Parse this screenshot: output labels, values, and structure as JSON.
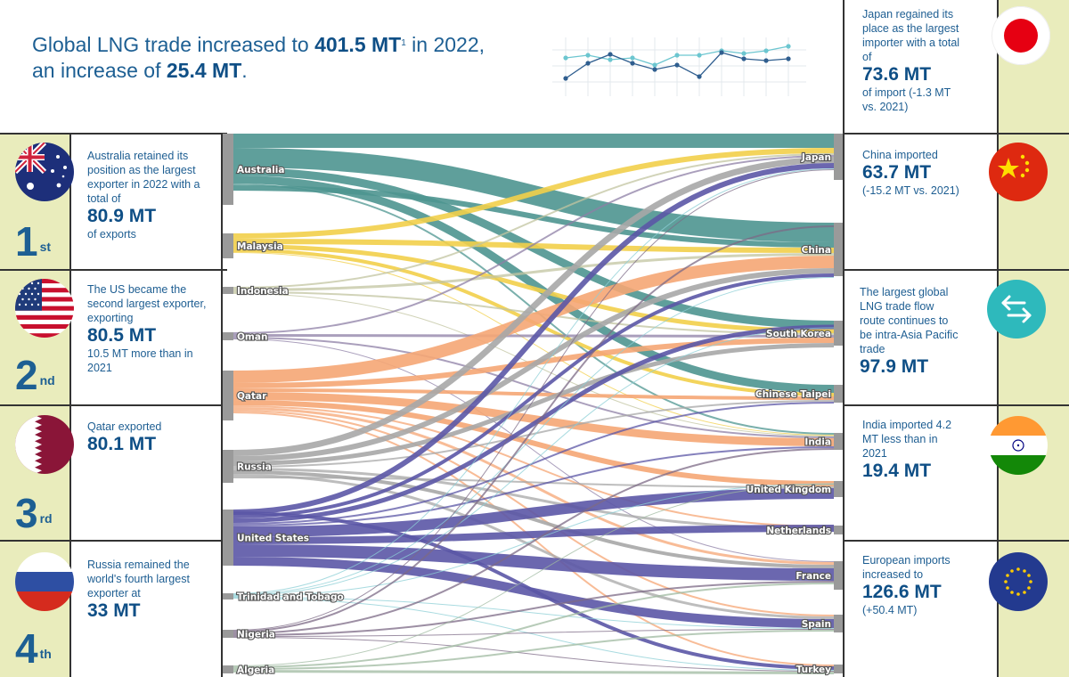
{
  "headline": {
    "part1": "Global LNG trade increased to ",
    "total": "401.5 MT",
    "footnote": "1",
    "part2": " in 2022,",
    "part3": "an increase of ",
    "increase": "25.4 MT",
    "part4": "."
  },
  "exporters": [
    {
      "flag": "australia-flag",
      "rank": "1",
      "suffix": "st",
      "text": "Australia retained its position as the largest exporter in 2022 with a total of",
      "value": "80.9 MT",
      "after": "of exports"
    },
    {
      "flag": "usa-flag",
      "rank": "2",
      "suffix": "nd",
      "text": "The US became the second largest exporter, exporting",
      "value": "80.5 MT",
      "after": "10.5 MT more than in 2021"
    },
    {
      "flag": "qatar-flag",
      "rank": "3",
      "suffix": "rd",
      "text": "Qatar exported",
      "value": "80.1 MT",
      "after": ""
    },
    {
      "flag": "russia-flag",
      "rank": "4",
      "suffix": "th",
      "text": "Russia remained the world's fourth largest exporter at",
      "value": "33 MT",
      "after": ""
    }
  ],
  "importers": [
    {
      "flag": "japan-flag",
      "text": "Japan regained its place as  the largest importer with a total of",
      "value": "73.6 MT",
      "after": "of import (-1.3 MT vs. 2021)"
    },
    {
      "flag": "china-flag",
      "text": "China imported",
      "value": "63.7 MT",
      "after": "(-15.2 MT vs. 2021)"
    },
    {
      "flag": "trade-arrows-icon",
      "text": "The largest global LNG trade flow route continues to be intra-Asia Pacific trade",
      "value": "97.9 MT",
      "after": ""
    },
    {
      "flag": "india-flag",
      "text": "India imported 4.2 MT less than in 2021",
      "value": "19.4 MT",
      "after": ""
    },
    {
      "flag": "eu-flag",
      "text": "European imports increased to",
      "value": "126.6 MT",
      "after": "(+50.4 MT)"
    }
  ],
  "sankey": {
    "sources": [
      {
        "name": "Australia",
        "color": "#4e9590"
      },
      {
        "name": "Malaysia",
        "color": "#f2cf4a"
      },
      {
        "name": "Indonesia",
        "color": "#c2c4a0"
      },
      {
        "name": "Oman",
        "color": "#8e7fa6"
      },
      {
        "name": "Qatar",
        "color": "#f5a674"
      },
      {
        "name": "Russia",
        "color": "#a7a7a7"
      },
      {
        "name": "United States",
        "color": "#5b56a6"
      },
      {
        "name": "Trinidad and Tobago",
        "color": "#8ccfd6"
      },
      {
        "name": "Nigeria",
        "color": "#7c6a86"
      },
      {
        "name": "Algeria",
        "color": "#9fb9a0"
      }
    ],
    "targets": [
      "Japan",
      "China",
      "South Korea",
      "Chinese Taipei",
      "India",
      "United Kingdom",
      "Netherlands",
      "France",
      "Spain",
      "Turkey"
    ],
    "colors": {
      "node": "#9a9a9a",
      "accent": "#1d5f93",
      "stripe": "#e9ecbc"
    }
  }
}
